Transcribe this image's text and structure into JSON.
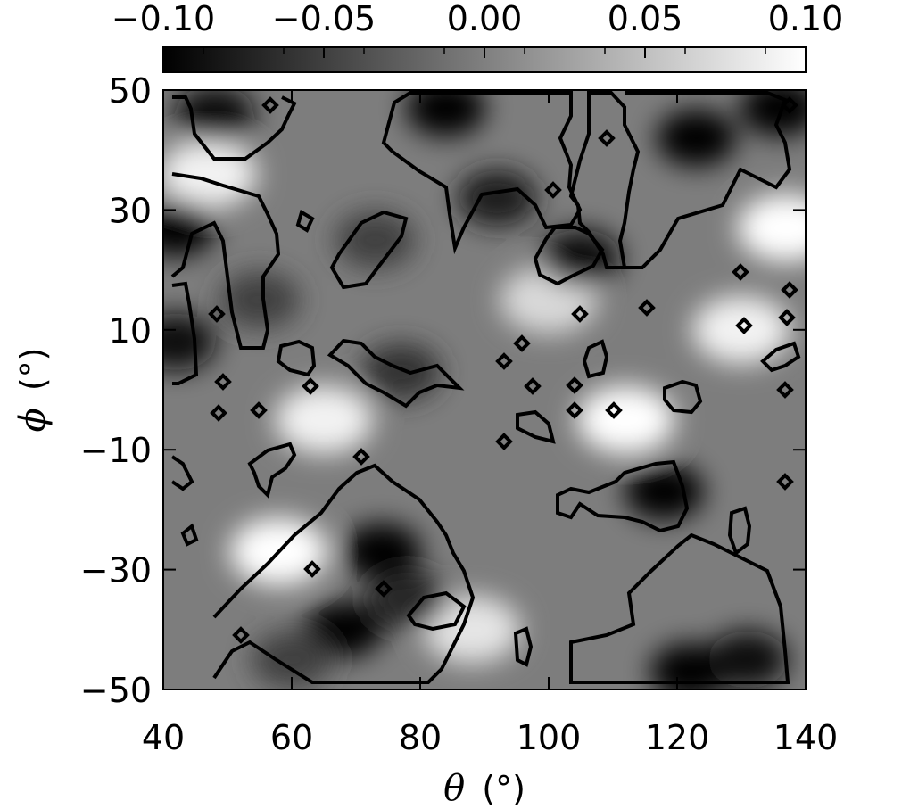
{
  "chart_data": {
    "type": "heatmap",
    "title": "",
    "xlabel_symbol": "θ",
    "xlabel_unit": "(°)",
    "ylabel_symbol": "ϕ",
    "ylabel_unit": "(°)",
    "xlim": [
      40,
      140
    ],
    "ylim": [
      -50,
      50
    ],
    "x_ticks": [
      40,
      60,
      80,
      100,
      120,
      140
    ],
    "y_ticks": [
      -50,
      -30,
      -10,
      10,
      30,
      50
    ],
    "colorbar": {
      "colormap": "grayscale",
      "range": [
        -0.1,
        0.1
      ],
      "ticks": [
        "−0.10",
        "−0.05",
        "0.00",
        "0.05",
        "0.10"
      ],
      "low_color": "#000000",
      "high_color": "#ffffff"
    },
    "contour": {
      "level": 0.0,
      "color": "#000000",
      "description": "outline of negative regions"
    },
    "dark_regions": [
      {
        "theta": 48,
        "phi": 46,
        "value": -0.09
      },
      {
        "theta": 84,
        "phi": 47,
        "value": -0.1
      },
      {
        "theta": 92,
        "phi": 32,
        "value": -0.08
      },
      {
        "theta": 105,
        "phi": 22,
        "value": -0.09
      },
      {
        "theta": 123,
        "phi": 42,
        "value": -0.1
      },
      {
        "theta": 136,
        "phi": 47,
        "value": -0.1
      },
      {
        "theta": 42,
        "phi": 27,
        "value": -0.1
      },
      {
        "theta": 42,
        "phi": 8,
        "value": -0.09
      },
      {
        "theta": 55,
        "phi": 15,
        "value": -0.05
      },
      {
        "theta": 73,
        "phi": 25,
        "value": -0.05
      },
      {
        "theta": 77,
        "phi": 3,
        "value": -0.06
      },
      {
        "theta": 74,
        "phi": -27,
        "value": -0.1
      },
      {
        "theta": 68,
        "phi": -40,
        "value": -0.1
      },
      {
        "theta": 78,
        "phi": -35,
        "value": -0.07
      },
      {
        "theta": 118,
        "phi": -17,
        "value": -0.1
      },
      {
        "theta": 122,
        "phi": -47,
        "value": -0.1
      },
      {
        "theta": 131,
        "phi": -45,
        "value": -0.09
      },
      {
        "theta": 60,
        "phi": -45,
        "value": -0.05
      }
    ],
    "bright_regions": [
      {
        "theta": 58,
        "phi": -27,
        "value": 0.1
      },
      {
        "theta": 112,
        "phi": -5,
        "value": 0.1
      },
      {
        "theta": 130,
        "phi": 10,
        "value": 0.09
      },
      {
        "theta": 65,
        "phi": -5,
        "value": 0.09
      },
      {
        "theta": 47,
        "phi": 36,
        "value": 0.09
      },
      {
        "theta": 100,
        "phi": 15,
        "value": 0.07
      },
      {
        "theta": 88,
        "phi": -40,
        "value": 0.08
      },
      {
        "theta": 137,
        "phi": 27,
        "value": 0.1
      }
    ]
  }
}
